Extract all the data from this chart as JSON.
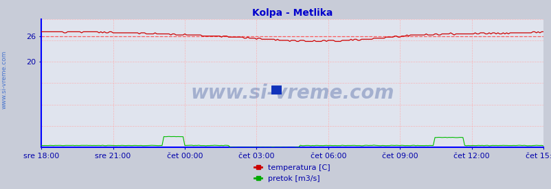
{
  "title": "Kolpa - Metlika",
  "title_color": "#0000cc",
  "title_fontsize": 10,
  "bg_color": "#c8ccd8",
  "plot_bg_color": "#e0e4ee",
  "grid_color_h": "#ffaaaa",
  "grid_color_v": "#ffaaaa",
  "x_labels": [
    "sre 18:00",
    "sre 21:00",
    "čet 00:00",
    "čet 03:00",
    "čet 06:00",
    "čet 09:00",
    "čet 12:00",
    "čet 15:00"
  ],
  "x_ticks_norm": [
    0.0,
    0.143,
    0.286,
    0.429,
    0.571,
    0.714,
    0.857,
    1.0
  ],
  "total_points": 288,
  "ylim": [
    0,
    30
  ],
  "yticks_show": [
    20,
    26
  ],
  "axis_label_color": "#0000aa",
  "axis_label_fontsize": 8,
  "border_left_color": "#0000ff",
  "border_bottom_color": "#0000ff",
  "watermark_text": "www.si-vreme.com",
  "watermark_color": "#1a3a8a",
  "watermark_alpha": 0.3,
  "watermark_fontsize": 20,
  "legend_labels": [
    "temperatura [C]",
    "pretok [m3/s]"
  ],
  "legend_colors": [
    "#cc0000",
    "#00aa00"
  ],
  "temp_avg_line": 26.0,
  "temp_avg_color": "#ff4444",
  "temp_color": "#cc0000",
  "flow_color": "#00bb00",
  "sidebar_text": "www.si-vreme.com",
  "sidebar_color": "#3366cc",
  "arrow_color": "#cc0000"
}
